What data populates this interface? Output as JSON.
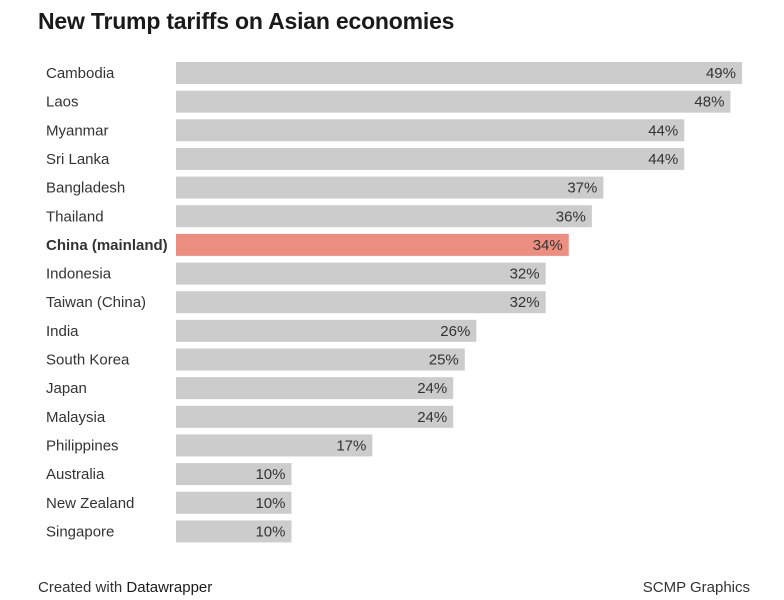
{
  "chart_data": {
    "type": "bar",
    "orientation": "horizontal",
    "title": "New Trump tariffs on Asian economies",
    "categories": [
      "Cambodia",
      "Laos",
      "Myanmar",
      "Sri Lanka",
      "Bangladesh",
      "Thailand",
      "China (mainland)",
      "Indonesia",
      "Taiwan (China)",
      "India",
      "South Korea",
      "Japan",
      "Malaysia",
      "Philippines",
      "Australia",
      "New Zealand",
      "Singapore"
    ],
    "values": [
      49,
      48,
      44,
      44,
      37,
      36,
      34,
      32,
      32,
      26,
      25,
      24,
      24,
      17,
      10,
      10,
      10
    ],
    "value_suffix": "%",
    "highlight": "China (mainland)",
    "xlim": [
      0,
      49
    ],
    "colors": {
      "bar": "#cccccc",
      "highlight": "#ec8f80",
      "label": "#333333",
      "value_label": "#333333"
    }
  },
  "footer": {
    "credit_prefix": "Created with",
    "credit_brand": "Datawrapper",
    "source": "SCMP Graphics"
  }
}
